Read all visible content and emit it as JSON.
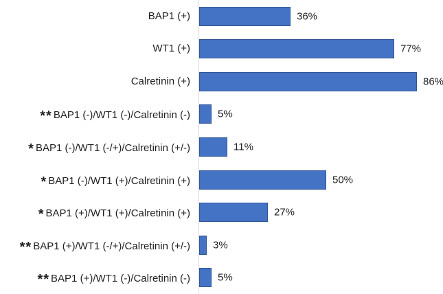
{
  "chart_data": {
    "type": "bar",
    "orientation": "horizontal",
    "title": "",
    "xlabel": "",
    "ylabel": "",
    "xlim": [
      0,
      96
    ],
    "grid": false,
    "legend": false,
    "bar_color": "#4472C4",
    "bar_border_color": "#2F5597",
    "axis_line_color": "#D9D9D9",
    "categories": [
      "BAP1 (+)",
      "WT1 (+)",
      "Calretinin (+)",
      "**BAP1 (-)/WT1 (-)/Calretinin (-)",
      "*BAP1 (-)/WT1 (-/+)/Calretinin (+/-)",
      "*BAP1 (-)/WT1 (+)/Calretinin (+)",
      "*BAP1 (+)/WT1 (+)/Calretinin (+)",
      "**BAP1 (+)/WT1 (-/+)/Calretinin (+/-)",
      "**BAP1 (+)/WT1 (-)/Calretinin (-)"
    ],
    "values": [
      36,
      77,
      86,
      5,
      11,
      50,
      27,
      3,
      5
    ],
    "rows": [
      {
        "prefix": "",
        "label": "BAP1 (+)",
        "value": 36,
        "value_label": "36%"
      },
      {
        "prefix": "",
        "label": "WT1 (+)",
        "value": 77,
        "value_label": "77%"
      },
      {
        "prefix": "",
        "label": "Calretinin (+)",
        "value": 86,
        "value_label": "86%"
      },
      {
        "prefix": "**",
        "label": "BAP1 (-)/WT1 (-)/Calretinin (-)",
        "value": 5,
        "value_label": "5%"
      },
      {
        "prefix": "*",
        "label": "BAP1 (-)/WT1 (-/+)/Calretinin (+/-)",
        "value": 11,
        "value_label": "11%"
      },
      {
        "prefix": "*",
        "label": "BAP1 (-)/WT1 (+)/Calretinin (+)",
        "value": 50,
        "value_label": "50%"
      },
      {
        "prefix": "*",
        "label": "BAP1 (+)/WT1 (+)/Calretinin (+)",
        "value": 27,
        "value_label": "27%"
      },
      {
        "prefix": "**",
        "label": "BAP1 (+)/WT1 (-/+)/Calretinin (+/-)",
        "value": 3,
        "value_label": "3%"
      },
      {
        "prefix": "**",
        "label": "BAP1 (+)/WT1 (-)/Calretinin (-)",
        "value": 5,
        "value_label": "5%"
      }
    ]
  }
}
